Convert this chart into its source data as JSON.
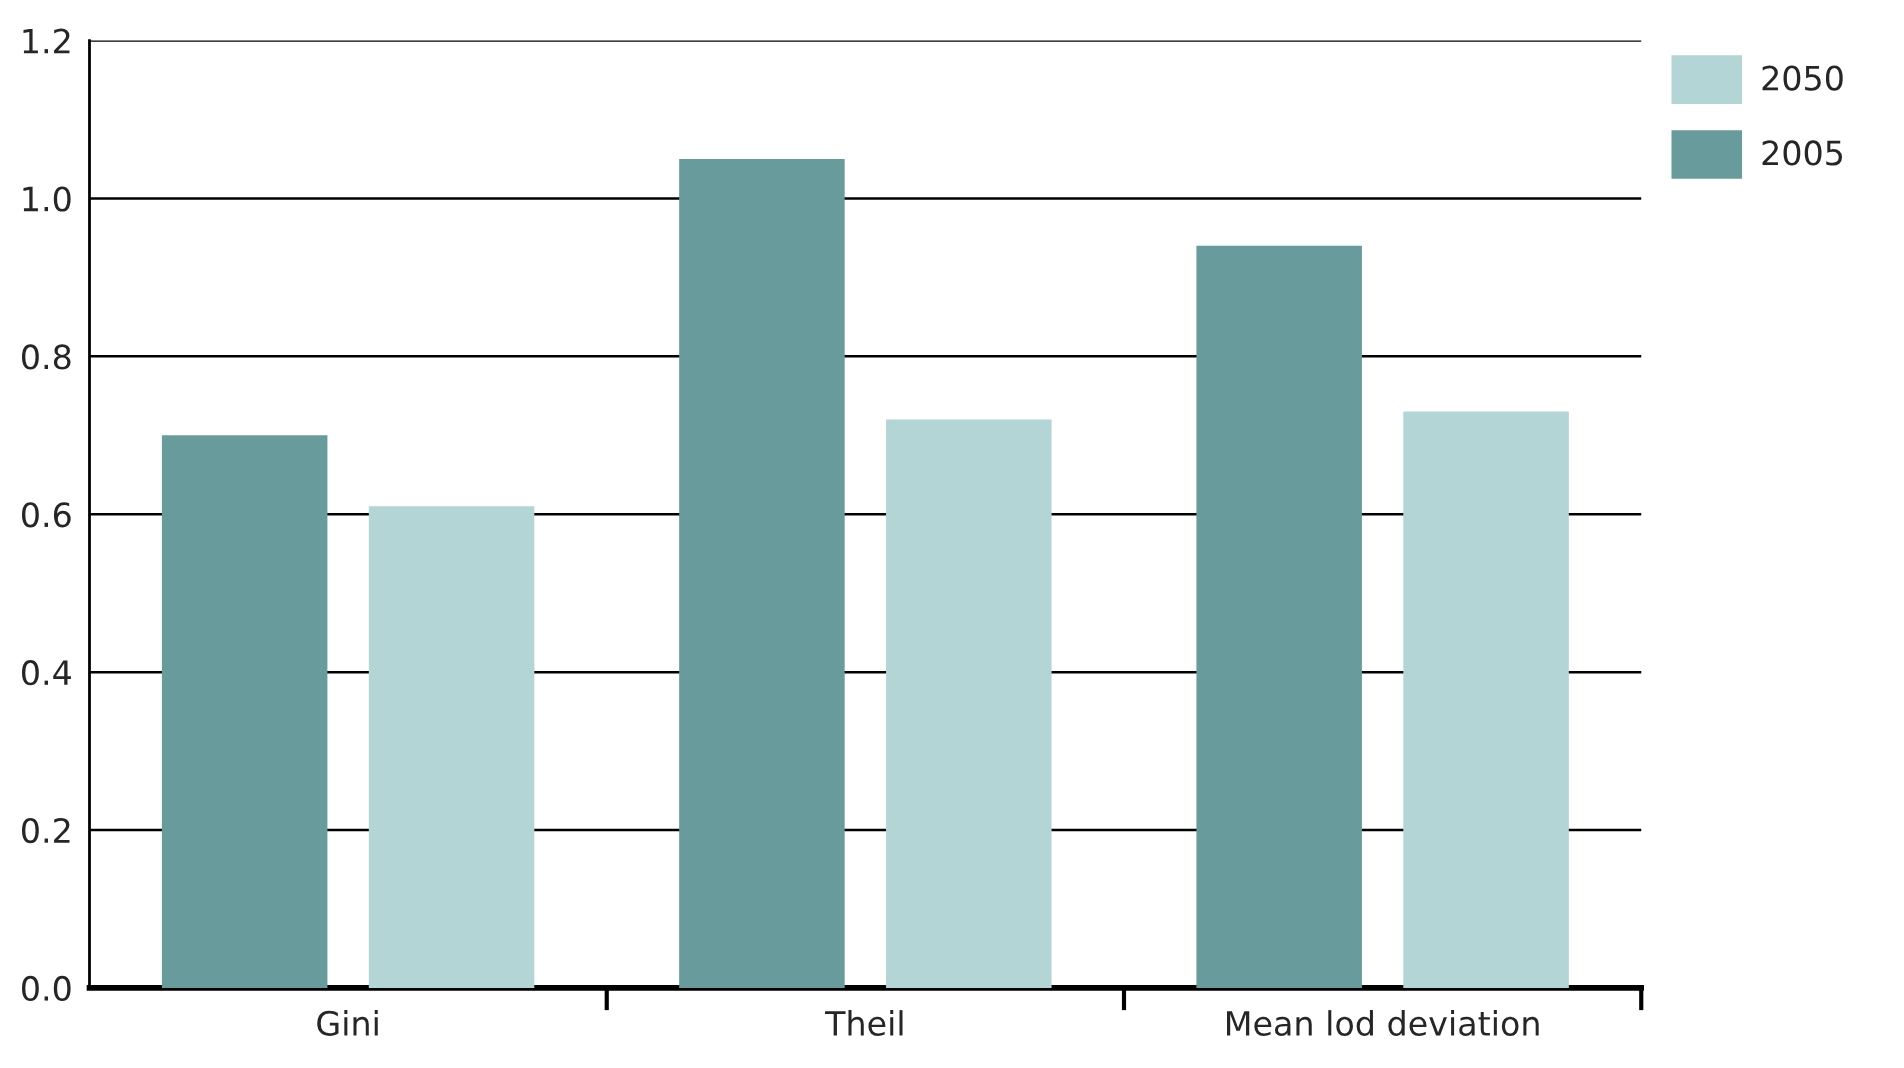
{
  "chart_data": {
    "type": "bar",
    "categories": [
      "Gini",
      "Theil",
      "Mean lod deviation"
    ],
    "series": [
      {
        "name": "2005",
        "color": "#689b9b",
        "values": [
          0.7,
          1.05,
          0.94
        ]
      },
      {
        "name": "2050",
        "color": "#b3d5d6",
        "values": [
          0.61,
          0.72,
          0.73
        ]
      }
    ],
    "ylim": [
      0,
      1.2
    ],
    "yticks": [
      {
        "value": 0,
        "label": "0.0"
      },
      0.2,
      0.4,
      0.6,
      0.8,
      {
        "value": 1.0,
        "label": "1.0"
      },
      1.2
    ],
    "grid": "y",
    "legend": "top right"
  }
}
